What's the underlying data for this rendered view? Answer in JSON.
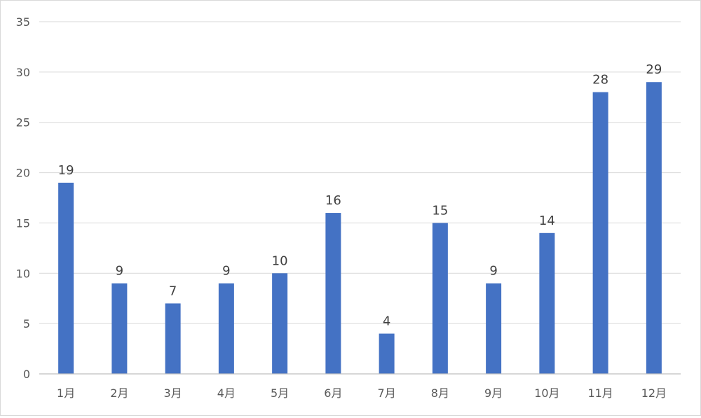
{
  "chart_data": {
    "type": "bar",
    "categories": [
      "1月",
      "2月",
      "3月",
      "4月",
      "5月",
      "6月",
      "7月",
      "8月",
      "9月",
      "10月",
      "11月",
      "12月"
    ],
    "values": [
      19,
      9,
      7,
      9,
      10,
      16,
      4,
      15,
      9,
      14,
      28,
      29
    ],
    "ylim": [
      0,
      35
    ],
    "yticks": [
      0,
      5,
      10,
      15,
      20,
      25,
      30,
      35
    ],
    "grid": true,
    "data_labels": true,
    "bar_color": "#4472c4"
  }
}
